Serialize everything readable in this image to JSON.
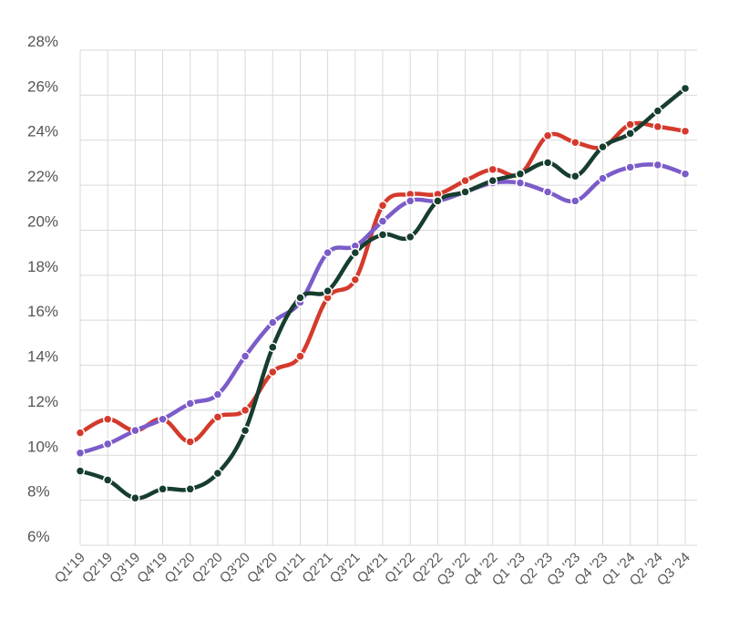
{
  "chart_data": {
    "type": "line",
    "title": "",
    "xlabel": "",
    "ylabel": "",
    "ylim": [
      6,
      28
    ],
    "y_ticks": [
      "6%",
      "8%",
      "10%",
      "12%",
      "14%",
      "16%",
      "18%",
      "20%",
      "22%",
      "24%",
      "26%",
      "28%"
    ],
    "y_tick_values": [
      6,
      8,
      10,
      12,
      14,
      16,
      18,
      20,
      22,
      24,
      26,
      28
    ],
    "grid": true,
    "legend": "none",
    "categories": [
      "Q1'19",
      "Q2'19",
      "Q3'19",
      "Q4'19",
      "Q1'20",
      "Q2'20",
      "Q3'20",
      "Q4'20",
      "Q1'21",
      "Q2'21",
      "Q3'21",
      "Q4'21",
      "Q1'22",
      "Q2'22",
      "Q3 '22",
      "Q4 '22",
      "Q1 '23",
      "Q2 '23",
      "Q3 '23",
      "Q4 '23",
      "Q1 '24",
      "Q2 '24",
      "Q3 '24"
    ],
    "series": [
      {
        "color": "#d43a2c",
        "values": [
          11.0,
          11.6,
          11.1,
          11.6,
          10.6,
          11.7,
          12.0,
          13.7,
          14.4,
          17.0,
          17.8,
          21.1,
          21.6,
          21.6,
          22.2,
          22.7,
          22.5,
          24.2,
          23.9,
          23.7,
          24.7,
          24.6,
          24.4
        ]
      },
      {
        "color": "#7b5cc9",
        "values": [
          10.1,
          10.5,
          11.1,
          11.6,
          12.3,
          12.7,
          14.4,
          15.9,
          16.8,
          19.0,
          19.3,
          20.4,
          21.3,
          21.3,
          21.7,
          22.1,
          22.1,
          21.7,
          21.3,
          22.3,
          22.8,
          22.9,
          22.5
        ]
      },
      {
        "color": "#173d2e",
        "values": [
          9.3,
          8.9,
          8.1,
          8.5,
          8.5,
          9.2,
          11.1,
          14.8,
          17.0,
          17.3,
          19.0,
          19.8,
          19.7,
          21.3,
          21.7,
          22.2,
          22.5,
          23.0,
          22.4,
          23.7,
          24.3,
          25.3,
          26.3
        ]
      }
    ]
  }
}
